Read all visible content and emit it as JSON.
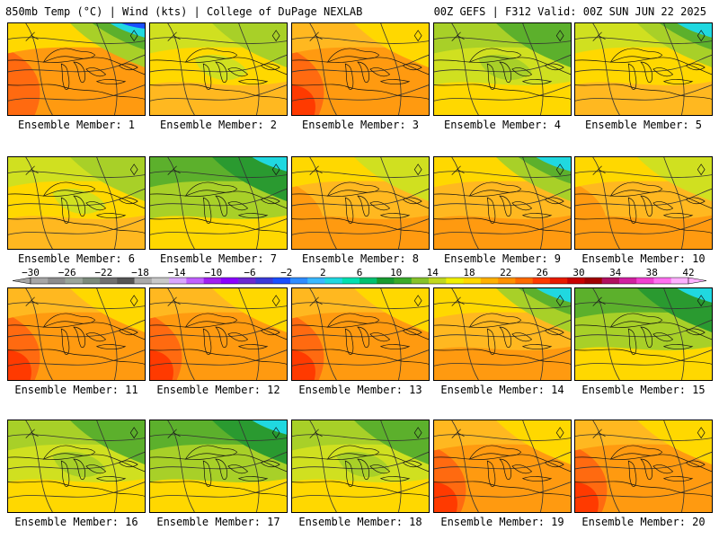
{
  "header": {
    "left": "850mb Temp (°C) | Wind (kts) | College of DuPage NEXLAB",
    "right": "00Z GEFS | F312 Valid: 00Z SUN JUN 22 2025"
  },
  "panels": [
    {
      "label": "Ensemble Member: 1",
      "theme": "warm-cold-ne"
    },
    {
      "label": "Ensemble Member: 2",
      "theme": "mild"
    },
    {
      "label": "Ensemble Member: 3",
      "theme": "hot"
    },
    {
      "label": "Ensemble Member: 4",
      "theme": "mild-green"
    },
    {
      "label": "Ensemble Member: 5",
      "theme": "cold-ne"
    },
    {
      "label": "Ensemble Member: 6",
      "theme": "mild"
    },
    {
      "label": "Ensemble Member: 7",
      "theme": "green"
    },
    {
      "label": "Ensemble Member: 8",
      "theme": "warm"
    },
    {
      "label": "Ensemble Member: 9",
      "theme": "warm-cold-n"
    },
    {
      "label": "Ensemble Member: 10",
      "theme": "warm"
    },
    {
      "label": "Ensemble Member: 11",
      "theme": "hot"
    },
    {
      "label": "Ensemble Member: 12",
      "theme": "hot"
    },
    {
      "label": "Ensemble Member: 13",
      "theme": "hot"
    },
    {
      "label": "Ensemble Member: 14",
      "theme": "warm-cold-n"
    },
    {
      "label": "Ensemble Member: 15",
      "theme": "green"
    },
    {
      "label": "Ensemble Member: 16",
      "theme": "mild-green"
    },
    {
      "label": "Ensemble Member: 17",
      "theme": "green"
    },
    {
      "label": "Ensemble Member: 18",
      "theme": "mild-green"
    },
    {
      "label": "Ensemble Member: 19",
      "theme": "hot"
    },
    {
      "label": "Ensemble Member: 20",
      "theme": "hot"
    }
  ],
  "colorbar": {
    "labels": [
      "−30",
      "−26",
      "−22",
      "−18",
      "−14",
      "−10",
      "−6",
      "−2",
      "2",
      "6",
      "10",
      "14",
      "18",
      "22",
      "26",
      "30",
      "34",
      "38",
      "42"
    ],
    "colors": [
      "#a6a6a6",
      "#8c8c8c",
      "#9aa59a",
      "#7b8a7b",
      "#6f6f6f",
      "#555555",
      "#a9a9a9",
      "#c8c8c8",
      "#d9a6ff",
      "#c060ff",
      "#a020f0",
      "#8a00ff",
      "#6a2ad0",
      "#3a3ad8",
      "#1a4fff",
      "#2f8cff",
      "#3ab8ff",
      "#20d8e0",
      "#00e0b0",
      "#00c070",
      "#189a30",
      "#3aaa2a",
      "#86c22a",
      "#c0d820",
      "#f0f000",
      "#ffd800",
      "#ffb000",
      "#ff9000",
      "#ff6a00",
      "#ff3a00",
      "#e81a00",
      "#c80000",
      "#a00000",
      "#b01060",
      "#d020a0",
      "#f040d0",
      "#ff70f0",
      "#ffb0ff"
    ]
  },
  "palette": {
    "deep-orange": "#ff6a10",
    "orange": "#ff9a10",
    "light-orange": "#ffb820",
    "yellow": "#ffd800",
    "lime": "#d0e020",
    "light-green": "#a8d028",
    "green": "#5cb02c",
    "dark-green": "#2a9a30",
    "cyan": "#20d8e0",
    "blue": "#1a4fff",
    "red": "#ff3a00"
  }
}
